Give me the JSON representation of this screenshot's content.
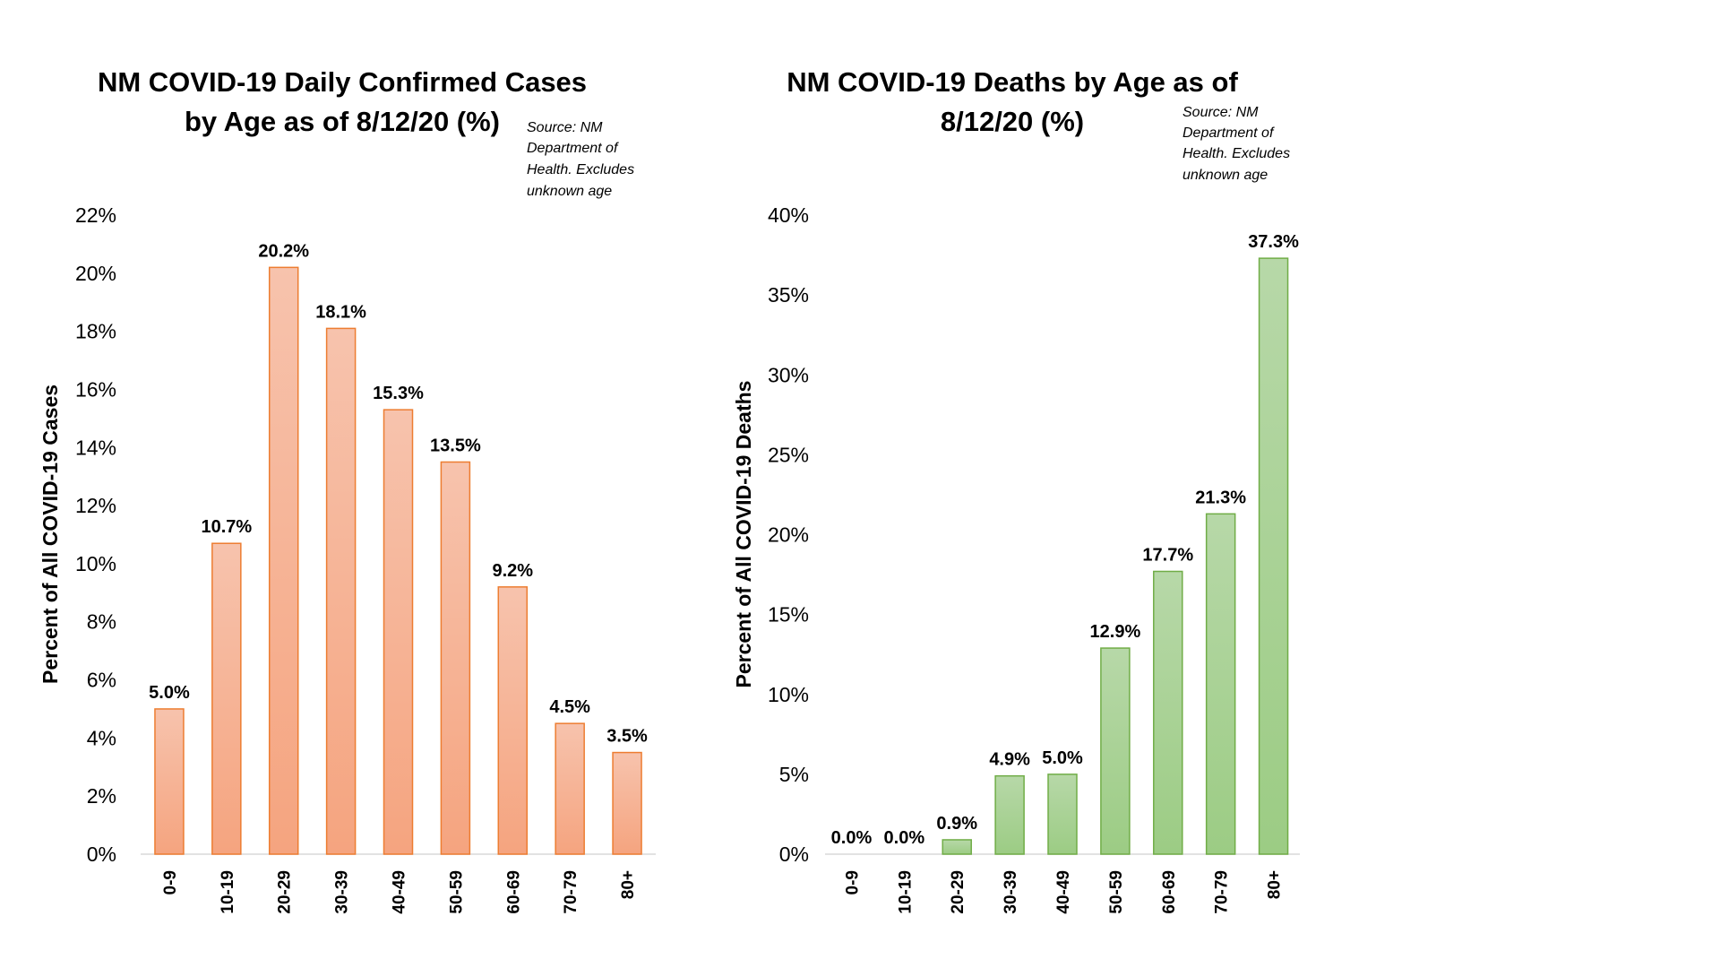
{
  "chart_data": [
    {
      "type": "bar",
      "title_lines": [
        "NM COVID-19 Daily Confirmed Cases",
        "by Age as of 8/12/20 (%)"
      ],
      "source_lines": [
        "Source: NM",
        "Department of",
        "Health. Excludes",
        "unknown age"
      ],
      "ylabel": "Percent of All COVID-19 Cases",
      "categories": [
        "0-9",
        "10-19",
        "20-29",
        "30-39",
        "40-49",
        "50-59",
        "60-69",
        "70-79",
        "80+"
      ],
      "values": [
        5.0,
        10.7,
        20.2,
        18.1,
        15.3,
        13.5,
        9.2,
        4.5,
        3.5
      ],
      "data_labels": [
        "5.0%",
        "10.7%",
        "20.2%",
        "18.1%",
        "15.3%",
        "13.5%",
        "9.2%",
        "4.5%",
        "3.5%"
      ],
      "ylim": [
        0,
        22
      ],
      "yticks": [
        0,
        2,
        4,
        6,
        8,
        10,
        12,
        14,
        16,
        18,
        20,
        22
      ],
      "ytick_labels": [
        "0%",
        "2%",
        "4%",
        "6%",
        "8%",
        "10%",
        "12%",
        "14%",
        "16%",
        "18%",
        "20%",
        "22%"
      ],
      "grid": false,
      "colors": {
        "fill_top": "#f7c3ad",
        "fill_bottom": "#f5a47f",
        "stroke": "#ed7d31"
      }
    },
    {
      "type": "bar",
      "title_lines": [
        "NM COVID-19 Deaths by Age as of",
        "8/12/20 (%)"
      ],
      "source_lines": [
        "Source: NM",
        "Department of",
        "Health. Excludes",
        "unknown age"
      ],
      "ylabel": "Percent of All COVID-19 Deaths",
      "categories": [
        "0-9",
        "10-19",
        "20-29",
        "30-39",
        "40-49",
        "50-59",
        "60-69",
        "70-79",
        "80+"
      ],
      "values": [
        0.0,
        0.0,
        0.9,
        4.9,
        5.0,
        12.9,
        17.7,
        21.3,
        37.3
      ],
      "data_labels": [
        "0.0%",
        "0.0%",
        "0.9%",
        "4.9%",
        "5.0%",
        "12.9%",
        "17.7%",
        "21.3%",
        "37.3%"
      ],
      "ylim": [
        0,
        40
      ],
      "yticks": [
        0,
        5,
        10,
        15,
        20,
        25,
        30,
        35,
        40
      ],
      "ytick_labels": [
        "0%",
        "5%",
        "10%",
        "15%",
        "20%",
        "25%",
        "30%",
        "35%",
        "40%"
      ],
      "grid": false,
      "colors": {
        "fill_top": "#b7d8a8",
        "fill_bottom": "#9ccc84",
        "stroke": "#70ad47"
      }
    }
  ]
}
